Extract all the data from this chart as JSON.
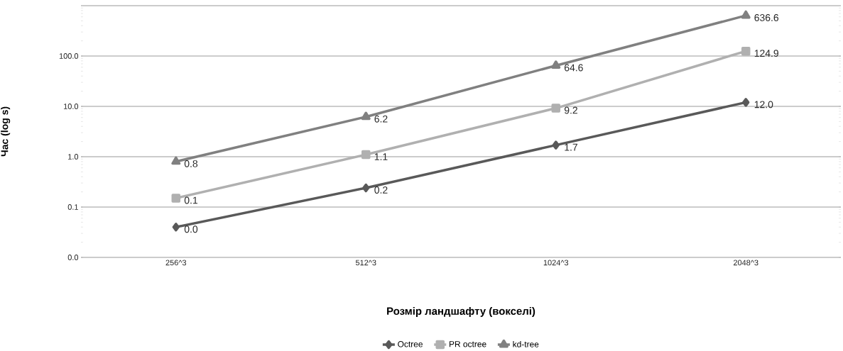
{
  "chart_data": {
    "type": "line",
    "xlabel": "Розмір ландшафту (вокселі)",
    "ylabel": "Час (log s)",
    "categories": [
      "256^3",
      "512^3",
      "1024^3",
      "2048^3"
    ],
    "log": "y",
    "ylim": [
      0.01,
      1000
    ],
    "yticks": [
      {
        "value": 0.01,
        "label": "0.0"
      },
      {
        "value": 0.1,
        "label": "0.1"
      },
      {
        "value": 1,
        "label": "1.0"
      },
      {
        "value": 10,
        "label": "10.0"
      },
      {
        "value": 100,
        "label": "100.0"
      },
      {
        "value": 1000,
        "label": null
      }
    ],
    "grid": "y",
    "legend": "bottom",
    "series": [
      {
        "name": "Octree",
        "color": "#595959",
        "marker": "diamond",
        "values": [
          0.04,
          0.24,
          1.7,
          12.0
        ],
        "value_labels": [
          "0.0",
          "0.2",
          "1.7",
          "12.0"
        ]
      },
      {
        "name": "PR octree",
        "color": "#b0b0b0",
        "marker": "square",
        "values": [
          0.15,
          1.1,
          9.2,
          124.9
        ],
        "value_labels": [
          "0.1",
          "1.1",
          "9.2",
          "124.9"
        ]
      },
      {
        "name": "kd-tree",
        "color": "#808080",
        "marker": "triangle",
        "values": [
          0.8,
          6.2,
          64.6,
          636.6
        ],
        "value_labels": [
          "0.8",
          "6.2",
          "64.6",
          "636.6"
        ]
      }
    ]
  }
}
